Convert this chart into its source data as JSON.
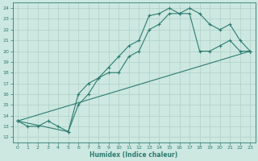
{
  "xlabel": "Humidex (Indice chaleur)",
  "xlim": [
    -0.5,
    23.5
  ],
  "ylim": [
    11.5,
    24.5
  ],
  "xticks": [
    0,
    1,
    2,
    3,
    4,
    5,
    6,
    7,
    8,
    9,
    10,
    11,
    12,
    13,
    14,
    15,
    16,
    17,
    18,
    19,
    20,
    21,
    22,
    23
  ],
  "yticks": [
    12,
    13,
    14,
    15,
    16,
    17,
    18,
    19,
    20,
    21,
    22,
    23,
    24
  ],
  "bg_color": "#cce8e0",
  "line_color": "#2e7b72",
  "grid_color": "#b0d0c8",
  "line1_x": [
    0,
    1,
    2,
    3,
    4,
    5,
    6,
    7,
    8,
    9,
    10,
    11,
    12,
    13,
    14,
    15,
    16,
    17,
    18,
    19,
    20,
    21,
    22,
    23
  ],
  "line1_y": [
    13.5,
    13,
    13,
    13.5,
    13,
    12.5,
    16,
    17,
    17.5,
    18.5,
    19.5,
    20.5,
    21,
    23.3,
    23.5,
    24,
    23.5,
    23.5,
    20,
    20,
    20.5,
    21,
    20,
    20
  ],
  "line2_x": [
    0,
    5,
    6,
    7,
    8,
    9,
    10,
    11,
    12,
    13,
    14,
    15,
    16,
    17,
    18,
    19,
    20,
    21,
    22,
    23
  ],
  "line2_y": [
    13.5,
    12.5,
    15,
    16,
    17.5,
    18,
    18,
    19.5,
    20,
    22,
    22.5,
    23.5,
    23.5,
    24,
    23.5,
    22.5,
    22,
    22.5,
    21,
    20
  ],
  "line3_x": [
    0,
    23
  ],
  "line3_y": [
    13.5,
    20
  ]
}
